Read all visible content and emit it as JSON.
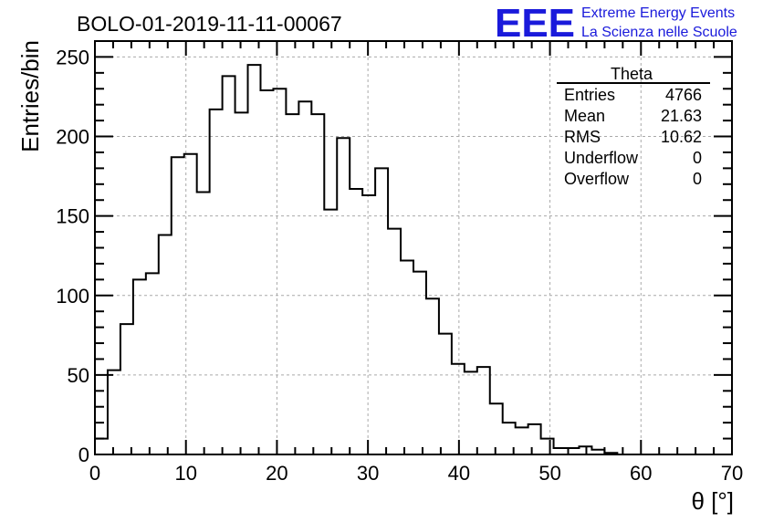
{
  "title": "BOLO-01-2019-11-11-00067",
  "logo": {
    "mark": "EEE",
    "line1": "Extreme Energy Events",
    "line2": "La Scienza nelle Scuole",
    "color": "#1a1adb"
  },
  "stats_box": {
    "title": "Theta",
    "rows": [
      {
        "label": "Entries",
        "value": "4766"
      },
      {
        "label": "Mean",
        "value": "21.63"
      },
      {
        "label": "RMS",
        "value": "10.62"
      },
      {
        "label": "Underflow",
        "value": "0"
      },
      {
        "label": "Overflow",
        "value": "0"
      }
    ]
  },
  "chart_data": {
    "type": "bar",
    "histogram": true,
    "xlabel": "θ [°]",
    "ylabel": "Entries/bin",
    "xlim": [
      0,
      70
    ],
    "ylim": [
      0,
      260
    ],
    "x_ticks": [
      0,
      10,
      20,
      30,
      40,
      50,
      60,
      70
    ],
    "y_ticks": [
      0,
      50,
      100,
      150,
      200,
      250
    ],
    "grid": true,
    "bin_width": 1.4,
    "bin_edges_start": 0,
    "values": [
      10,
      53,
      82,
      110,
      114,
      138,
      187,
      189,
      165,
      217,
      238,
      215,
      245,
      229,
      230,
      214,
      222,
      214,
      154,
      199,
      167,
      163,
      180,
      142,
      122,
      115,
      98,
      76,
      57,
      52,
      55,
      32,
      20,
      17,
      19,
      10,
      4,
      4,
      5,
      3,
      1,
      0,
      0,
      0,
      0,
      0,
      0,
      0,
      0,
      0
    ],
    "line_color": "#000000"
  }
}
